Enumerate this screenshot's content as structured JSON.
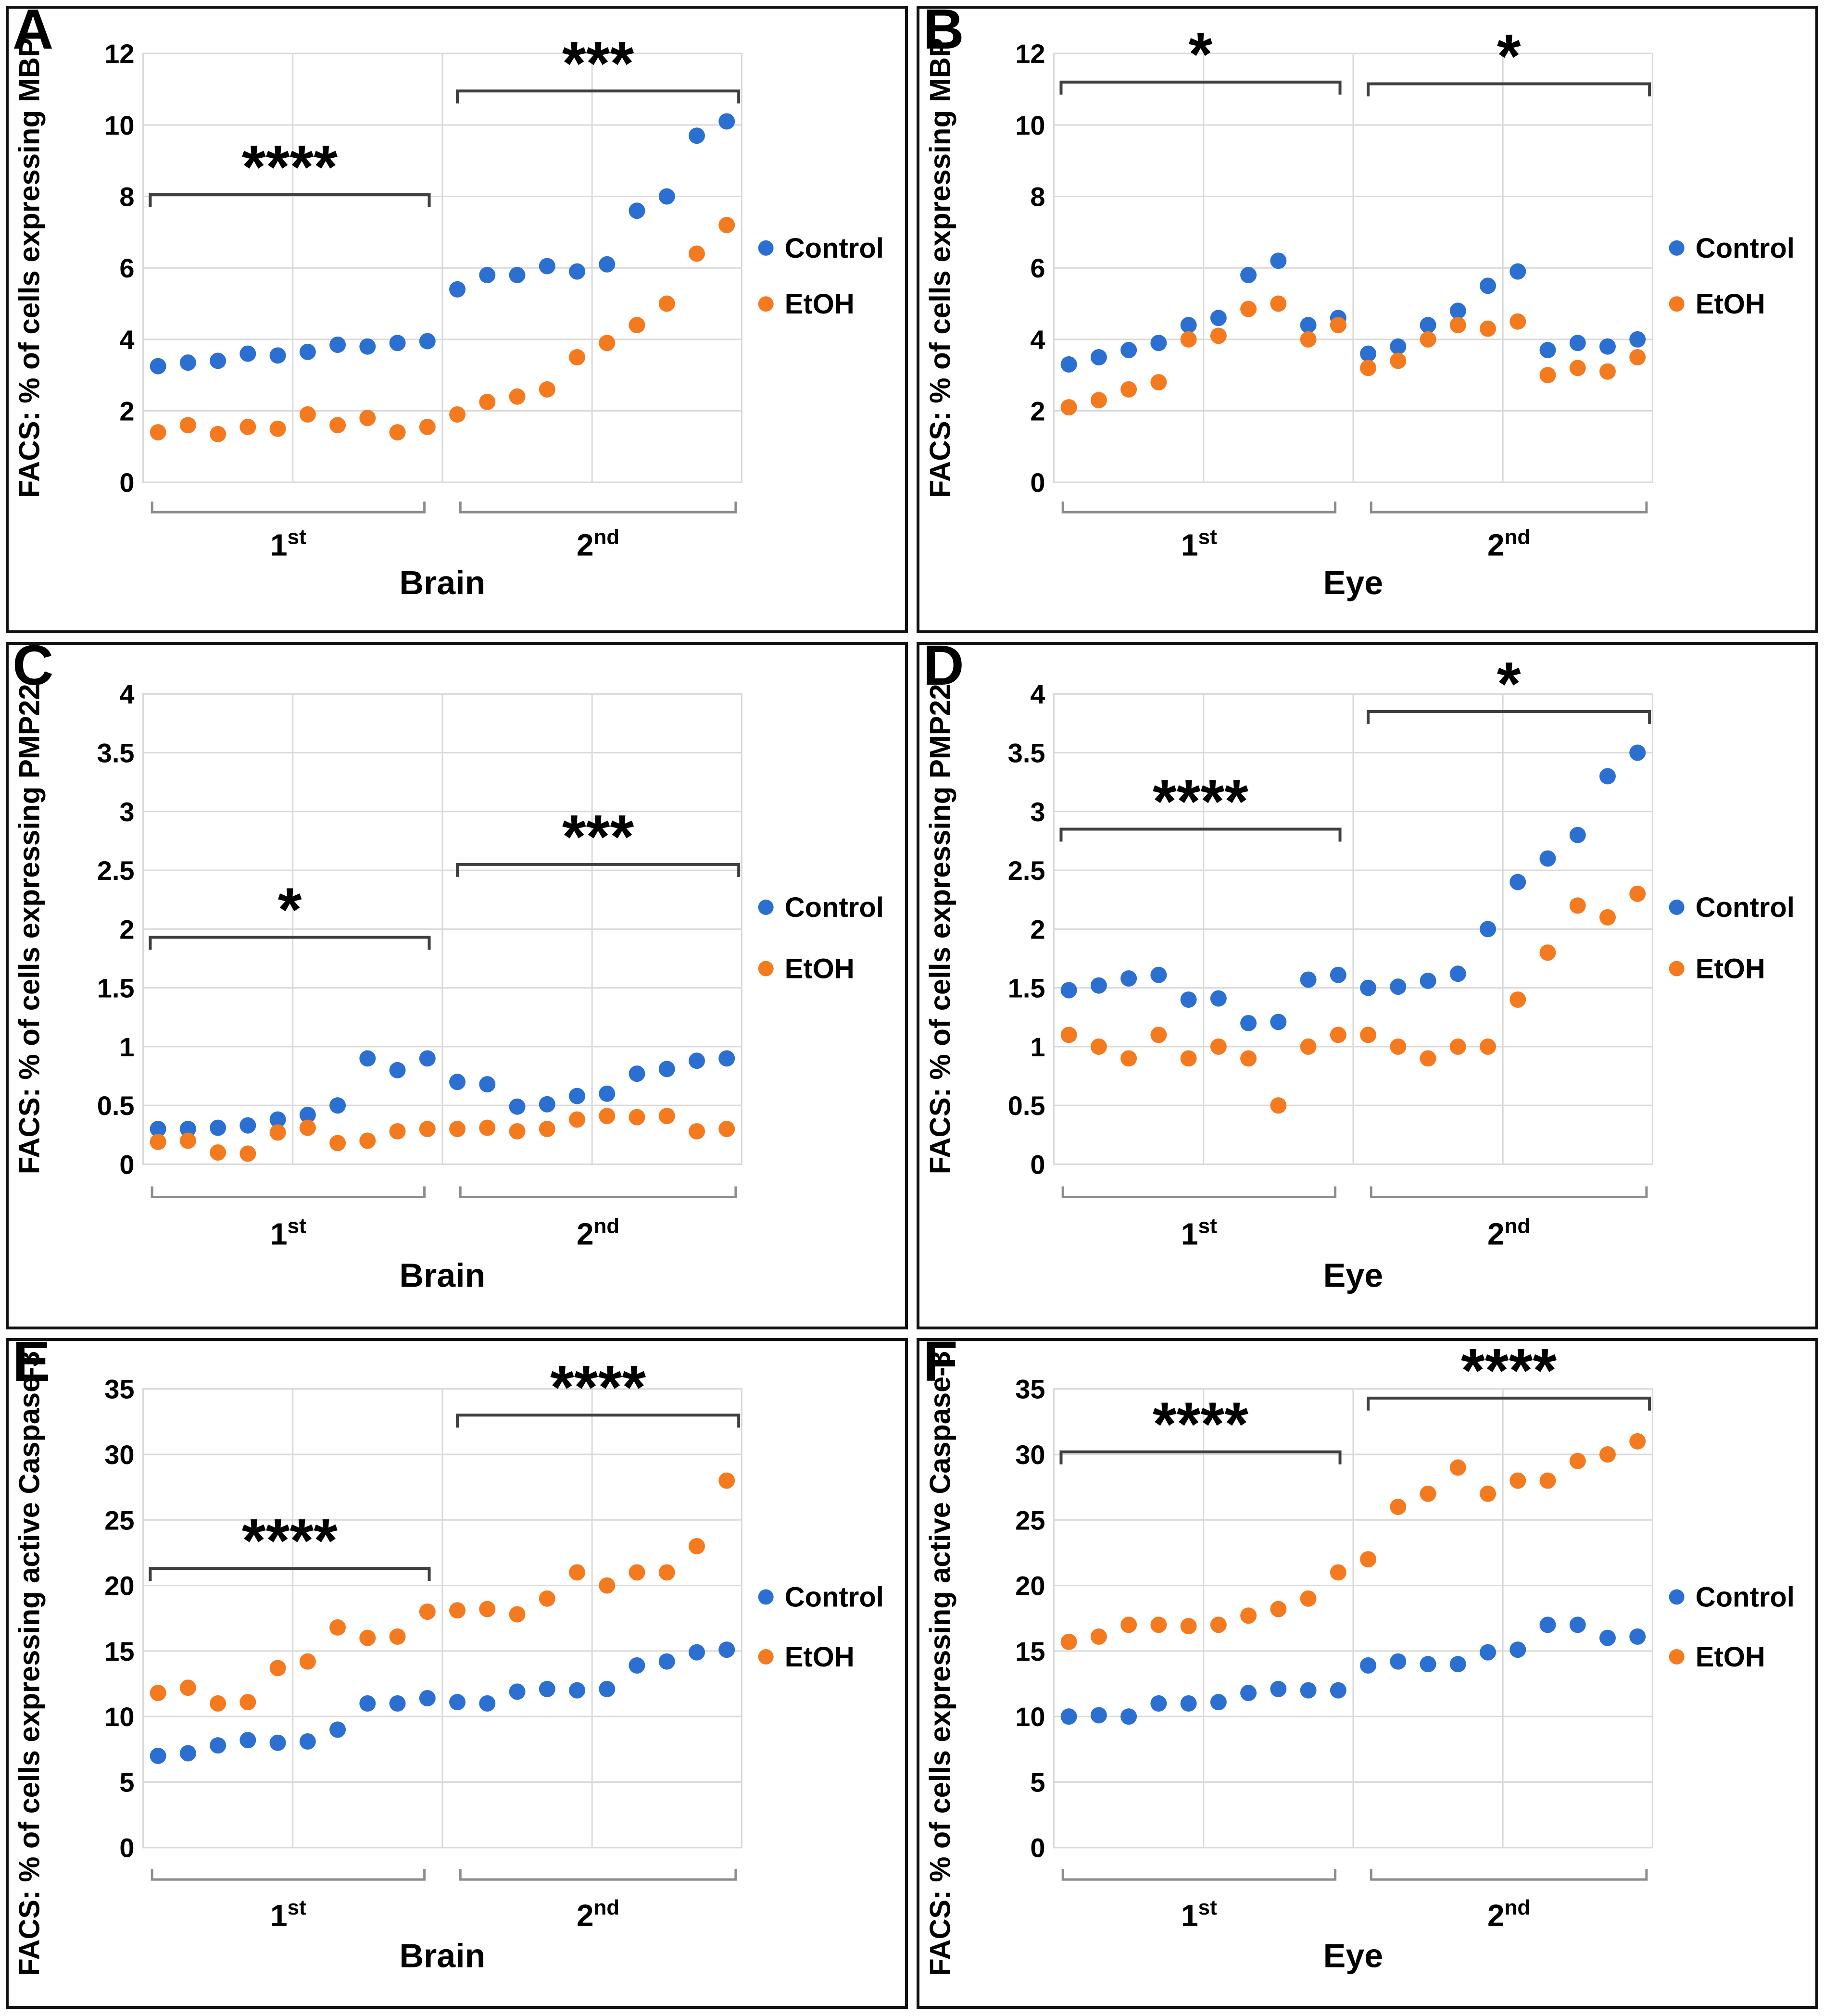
{
  "figure": {
    "legend": {
      "control_label": "Control",
      "etoh_label": "EtOH"
    },
    "colors": {
      "control": "#2B6FD1",
      "etoh": "#F47A20",
      "grid": "#D9D9D9",
      "sig_bracket": "#3F3F3F",
      "group_bracket": "#8C8C8C",
      "panel_border": "#111111"
    }
  },
  "chart_data": [
    {
      "panel": "A",
      "type": "scatter",
      "ylabel": "FACS: % of cells expressing MBP",
      "xlabel": "Brain",
      "ylim": [
        0,
        12
      ],
      "yticks": [
        "0",
        "2",
        "4",
        "6",
        "8",
        "10",
        "12"
      ],
      "grid": true,
      "legend_position": "right",
      "group_labels": [
        {
          "base": "1",
          "sup": "st"
        },
        {
          "base": "2",
          "sup": "nd"
        }
      ],
      "series": [
        {
          "name": "Control",
          "color": "#2B6FD1",
          "group1": [
            3.25,
            3.35,
            3.4,
            3.6,
            3.55,
            3.65,
            3.85,
            3.8,
            3.9,
            3.95
          ],
          "group2": [
            5.4,
            5.8,
            5.8,
            6.05,
            5.9,
            6.1,
            7.6,
            8.0,
            9.7,
            10.1
          ]
        },
        {
          "name": "EtOH",
          "color": "#F47A20",
          "group1": [
            1.4,
            1.6,
            1.35,
            1.55,
            1.5,
            1.9,
            1.6,
            1.8,
            1.4,
            1.55
          ],
          "group2": [
            1.9,
            2.25,
            2.4,
            2.6,
            3.5,
            3.9,
            4.4,
            5.0,
            6.4,
            7.2
          ]
        }
      ],
      "significance": [
        {
          "stars": "****",
          "group": 1,
          "y": 8.05
        },
        {
          "stars": "***",
          "group": 2,
          "y": 10.95
        }
      ]
    },
    {
      "panel": "B",
      "type": "scatter",
      "ylabel": "FACS: % of cells expressing MBP",
      "xlabel": "Eye",
      "ylim": [
        0,
        12
      ],
      "yticks": [
        "0",
        "2",
        "4",
        "6",
        "8",
        "10",
        "12"
      ],
      "grid": true,
      "legend_position": "right",
      "group_labels": [
        {
          "base": "1",
          "sup": "st"
        },
        {
          "base": "2",
          "sup": "nd"
        }
      ],
      "series": [
        {
          "name": "Control",
          "color": "#2B6FD1",
          "group1": [
            3.3,
            3.5,
            3.7,
            3.9,
            4.4,
            4.6,
            5.8,
            6.2,
            4.4,
            4.6
          ],
          "group2": [
            3.6,
            3.8,
            4.4,
            4.8,
            5.5,
            5.9,
            3.7,
            3.9,
            3.8,
            4.0
          ]
        },
        {
          "name": "EtOH",
          "color": "#F47A20",
          "group1": [
            2.1,
            2.3,
            2.6,
            2.8,
            4.0,
            4.1,
            4.85,
            5.0,
            4.0,
            4.4
          ],
          "group2": [
            3.2,
            3.4,
            4.0,
            4.4,
            4.3,
            4.5,
            3.0,
            3.2,
            3.1,
            3.5
          ]
        }
      ],
      "significance": [
        {
          "stars": "*",
          "group": 1,
          "y": 11.2
        },
        {
          "stars": "*",
          "group": 2,
          "y": 11.15
        }
      ]
    },
    {
      "panel": "C",
      "type": "scatter",
      "ylabel": "FACS: % of cells expressing PMP22",
      "xlabel": "Brain",
      "ylim": [
        0,
        4
      ],
      "yticks": [
        "0",
        "0.5",
        "1",
        "1.5",
        "2",
        "2.5",
        "3",
        "3.5",
        "4"
      ],
      "grid": true,
      "legend_position": "right",
      "group_labels": [
        {
          "base": "1",
          "sup": "st"
        },
        {
          "base": "2",
          "sup": "nd"
        }
      ],
      "series": [
        {
          "name": "Control",
          "color": "#2B6FD1",
          "group1": [
            0.3,
            0.3,
            0.31,
            0.33,
            0.38,
            0.42,
            0.5,
            0.9,
            0.8,
            0.9
          ],
          "group2": [
            0.7,
            0.68,
            0.49,
            0.51,
            0.58,
            0.6,
            0.77,
            0.81,
            0.88,
            0.9
          ]
        },
        {
          "name": "EtOH",
          "color": "#F47A20",
          "group1": [
            0.19,
            0.2,
            0.1,
            0.09,
            0.27,
            0.31,
            0.18,
            0.2,
            0.28,
            0.3
          ],
          "group2": [
            0.3,
            0.31,
            0.28,
            0.3,
            0.38,
            0.41,
            0.4,
            0.41,
            0.28,
            0.3
          ]
        }
      ],
      "significance": [
        {
          "stars": "*",
          "group": 1,
          "y": 1.93
        },
        {
          "stars": "***",
          "group": 2,
          "y": 2.55
        }
      ]
    },
    {
      "panel": "D",
      "type": "scatter",
      "ylabel": "FACS: % of cells expressing PMP22",
      "xlabel": "Eye",
      "ylim": [
        0,
        4
      ],
      "yticks": [
        "0",
        "0.5",
        "1",
        "1.5",
        "2",
        "2.5",
        "3",
        "3.5",
        "4"
      ],
      "grid": true,
      "legend_position": "right",
      "group_labels": [
        {
          "base": "1",
          "sup": "st"
        },
        {
          "base": "2",
          "sup": "nd"
        }
      ],
      "series": [
        {
          "name": "Control",
          "color": "#2B6FD1",
          "group1": [
            1.48,
            1.52,
            1.58,
            1.61,
            1.4,
            1.41,
            1.2,
            1.21,
            1.57,
            1.61
          ],
          "group2": [
            1.5,
            1.51,
            1.56,
            1.62,
            2.0,
            2.4,
            2.6,
            2.8,
            3.3,
            3.5
          ]
        },
        {
          "name": "EtOH",
          "color": "#F47A20",
          "group1": [
            1.1,
            1.0,
            0.9,
            1.1,
            0.9,
            1.0,
            0.9,
            0.5,
            1.0,
            1.1
          ],
          "group2": [
            1.1,
            1.0,
            0.9,
            1.0,
            1.0,
            1.4,
            1.8,
            2.2,
            2.1,
            2.3
          ]
        }
      ],
      "significance": [
        {
          "stars": "****",
          "group": 1,
          "y": 2.85
        },
        {
          "stars": "*",
          "group": 2,
          "y": 3.85
        }
      ]
    },
    {
      "panel": "E",
      "type": "scatter",
      "ylabel": "FACS: % of cells expressing active Caspase-3",
      "xlabel": "Brain",
      "ylim": [
        0,
        35
      ],
      "yticks": [
        "0",
        "5",
        "10",
        "15",
        "20",
        "25",
        "30",
        "35"
      ],
      "grid": true,
      "legend_position": "right",
      "group_labels": [
        {
          "base": "1",
          "sup": "st"
        },
        {
          "base": "2",
          "sup": "nd"
        }
      ],
      "series": [
        {
          "name": "Control",
          "color": "#2B6FD1",
          "group1": [
            7.0,
            7.2,
            7.8,
            8.2,
            8.0,
            8.1,
            9.0,
            11.0,
            11.0,
            11.4
          ],
          "group2": [
            11.1,
            11.0,
            11.9,
            12.1,
            12.0,
            12.1,
            13.9,
            14.2,
            14.9,
            15.1
          ]
        },
        {
          "name": "EtOH",
          "color": "#F47A20",
          "group1": [
            11.8,
            12.2,
            11.0,
            11.1,
            13.7,
            14.2,
            16.8,
            16.0,
            16.1,
            18.0
          ],
          "group2": [
            18.1,
            18.2,
            17.8,
            19.0,
            21.0,
            20.0,
            21.0,
            21.0,
            23.0,
            28.0
          ]
        }
      ],
      "significance": [
        {
          "stars": "****",
          "group": 1,
          "y": 21.3
        },
        {
          "stars": "****",
          "group": 2,
          "y": 33.0
        }
      ]
    },
    {
      "panel": "F",
      "type": "scatter",
      "ylabel": "FACS: % of cells expressing active Caspase-3",
      "xlabel": "Eye",
      "ylim": [
        0,
        35
      ],
      "yticks": [
        "0",
        "5",
        "10",
        "15",
        "20",
        "25",
        "30",
        "35"
      ],
      "grid": true,
      "legend_position": "right",
      "group_labels": [
        {
          "base": "1",
          "sup": "st"
        },
        {
          "base": "2",
          "sup": "nd"
        }
      ],
      "series": [
        {
          "name": "Control",
          "color": "#2B6FD1",
          "group1": [
            10.0,
            10.1,
            10.0,
            11.0,
            11.0,
            11.1,
            11.8,
            12.1,
            12.0,
            12.0
          ],
          "group2": [
            13.9,
            14.2,
            14.0,
            14.0,
            14.9,
            15.1,
            17.0,
            17.0,
            16.0,
            16.1
          ]
        },
        {
          "name": "EtOH",
          "color": "#F47A20",
          "group1": [
            15.7,
            16.1,
            17.0,
            17.0,
            16.9,
            17.0,
            17.7,
            18.2,
            19.0,
            21.0
          ],
          "group2": [
            22.0,
            26.0,
            27.0,
            29.0,
            27.0,
            28.0,
            28.0,
            29.5,
            30.0,
            31.0
          ]
        }
      ],
      "significance": [
        {
          "stars": "****",
          "group": 1,
          "y": 30.2
        },
        {
          "stars": "****",
          "group": 2,
          "y": 34.3
        }
      ]
    }
  ]
}
